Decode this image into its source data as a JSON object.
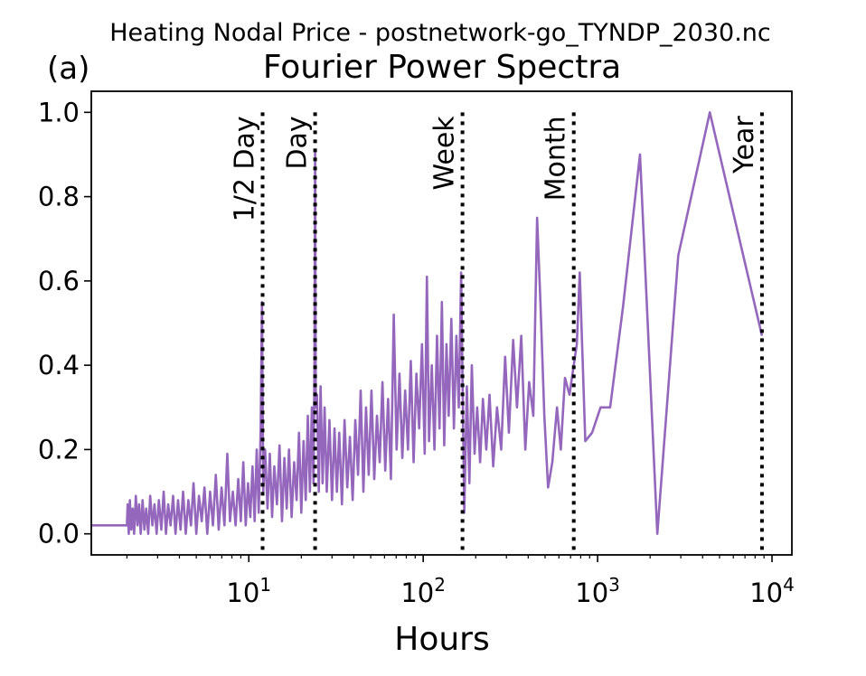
{
  "figure": {
    "suptitle": "Heating Nodal Price - postnetwork-go_TYNDP_2030.nc",
    "panel_label": "(a)"
  },
  "chart_data": {
    "type": "line",
    "title": "Fourier Power Spectra",
    "xlabel": "Hours",
    "ylabel": "",
    "xscale": "log",
    "xlim": [
      1.25,
      13000
    ],
    "ylim": [
      -0.05,
      1.05
    ],
    "x_ticks": [
      {
        "value": 10,
        "base": "10",
        "exp": "1"
      },
      {
        "value": 100,
        "base": "10",
        "exp": "2"
      },
      {
        "value": 1000,
        "base": "10",
        "exp": "3"
      },
      {
        "value": 10000,
        "base": "10",
        "exp": "4"
      }
    ],
    "y_ticks": [
      {
        "value": 0.0,
        "label": "0.0"
      },
      {
        "value": 0.2,
        "label": "0.2"
      },
      {
        "value": 0.4,
        "label": "0.4"
      },
      {
        "value": 0.6,
        "label": "0.6"
      },
      {
        "value": 0.8,
        "label": "0.8"
      },
      {
        "value": 1.0,
        "label": "1.0"
      }
    ],
    "grid": false,
    "series": [
      {
        "color": "#9467bd",
        "points": [
          [
            1.25,
            0.02
          ],
          [
            1.8,
            0.02
          ],
          [
            2.0,
            0.02
          ],
          [
            2.02,
            0.07
          ],
          [
            2.05,
            0.0
          ],
          [
            2.08,
            0.08
          ],
          [
            2.12,
            0.01
          ],
          [
            2.16,
            0.06
          ],
          [
            2.2,
            0.0
          ],
          [
            2.25,
            0.09
          ],
          [
            2.3,
            0.02
          ],
          [
            2.35,
            0.07
          ],
          [
            2.4,
            0.0
          ],
          [
            2.46,
            0.08
          ],
          [
            2.52,
            0.01
          ],
          [
            2.58,
            0.06
          ],
          [
            2.65,
            0.0
          ],
          [
            2.72,
            0.09
          ],
          [
            2.8,
            0.02
          ],
          [
            2.88,
            0.07
          ],
          [
            2.96,
            0.0
          ],
          [
            3.05,
            0.08
          ],
          [
            3.15,
            0.01
          ],
          [
            3.25,
            0.1
          ],
          [
            3.35,
            0.0
          ],
          [
            3.45,
            0.07
          ],
          [
            3.56,
            0.02
          ],
          [
            3.68,
            0.09
          ],
          [
            3.8,
            0.0
          ],
          [
            3.93,
            0.08
          ],
          [
            4.06,
            0.01
          ],
          [
            4.2,
            0.1
          ],
          [
            4.35,
            0.0
          ],
          [
            4.5,
            0.08
          ],
          [
            4.66,
            0.02
          ],
          [
            4.82,
            0.12
          ],
          [
            5.0,
            0.0
          ],
          [
            5.18,
            0.09
          ],
          [
            5.37,
            0.03
          ],
          [
            5.57,
            0.11
          ],
          [
            5.78,
            0.0
          ],
          [
            6.0,
            0.1
          ],
          [
            6.23,
            0.02
          ],
          [
            6.47,
            0.14
          ],
          [
            6.72,
            0.01
          ],
          [
            6.98,
            0.11
          ],
          [
            7.25,
            0.02
          ],
          [
            7.53,
            0.19
          ],
          [
            7.8,
            0.03
          ],
          [
            8.1,
            0.1
          ],
          [
            8.4,
            0.02
          ],
          [
            8.7,
            0.13
          ],
          [
            9.0,
            0.03
          ],
          [
            9.3,
            0.17
          ],
          [
            9.6,
            0.02
          ],
          [
            9.9,
            0.12
          ],
          [
            10.2,
            0.04
          ],
          [
            10.5,
            0.16
          ],
          [
            10.8,
            0.03
          ],
          [
            11.1,
            0.2
          ],
          [
            11.4,
            0.05
          ],
          [
            11.7,
            0.25
          ],
          [
            11.9,
            0.55
          ],
          [
            12.1,
            0.1
          ],
          [
            12.4,
            0.2
          ],
          [
            12.8,
            0.06
          ],
          [
            13.2,
            0.19
          ],
          [
            13.6,
            0.04
          ],
          [
            14.0,
            0.16
          ],
          [
            14.5,
            0.07
          ],
          [
            15.0,
            0.21
          ],
          [
            15.5,
            0.03
          ],
          [
            16.0,
            0.18
          ],
          [
            16.5,
            0.06
          ],
          [
            17.0,
            0.2
          ],
          [
            17.6,
            0.04
          ],
          [
            18.2,
            0.17
          ],
          [
            18.8,
            0.08
          ],
          [
            19.4,
            0.24
          ],
          [
            20.0,
            0.05
          ],
          [
            20.6,
            0.22
          ],
          [
            21.2,
            0.08
          ],
          [
            21.8,
            0.28
          ],
          [
            22.4,
            0.1
          ],
          [
            23.0,
            0.3
          ],
          [
            23.5,
            0.12
          ],
          [
            23.8,
            0.4
          ],
          [
            24.0,
            0.91
          ],
          [
            24.2,
            0.3
          ],
          [
            24.6,
            0.33
          ],
          [
            25.2,
            0.1
          ],
          [
            25.8,
            0.35
          ],
          [
            26.5,
            0.12
          ],
          [
            27.2,
            0.3
          ],
          [
            28.0,
            0.1
          ],
          [
            29.0,
            0.27
          ],
          [
            30.0,
            0.08
          ],
          [
            31.0,
            0.25
          ],
          [
            32.0,
            0.1
          ],
          [
            33.0,
            0.24
          ],
          [
            34.2,
            0.07
          ],
          [
            35.4,
            0.27
          ],
          [
            36.7,
            0.11
          ],
          [
            38.0,
            0.23
          ],
          [
            39.4,
            0.08
          ],
          [
            40.8,
            0.27
          ],
          [
            42.3,
            0.14
          ],
          [
            43.8,
            0.34
          ],
          [
            45.4,
            0.1
          ],
          [
            47.0,
            0.3
          ],
          [
            48.7,
            0.14
          ],
          [
            50.5,
            0.34
          ],
          [
            52.4,
            0.13
          ],
          [
            54.3,
            0.28
          ],
          [
            56.3,
            0.17
          ],
          [
            58.4,
            0.36
          ],
          [
            60.6,
            0.15
          ],
          [
            62.9,
            0.32
          ],
          [
            65.3,
            0.13
          ],
          [
            67.8,
            0.52
          ],
          [
            70.4,
            0.2
          ],
          [
            73.1,
            0.38
          ],
          [
            75.9,
            0.18
          ],
          [
            78.8,
            0.34
          ],
          [
            81.8,
            0.2
          ],
          [
            84.9,
            0.41
          ],
          [
            88.1,
            0.17
          ],
          [
            91.4,
            0.38
          ],
          [
            94.8,
            0.25
          ],
          [
            98.4,
            0.45
          ],
          [
            102.0,
            0.19
          ],
          [
            105.0,
            0.61
          ],
          [
            108.0,
            0.22
          ],
          [
            112.0,
            0.4
          ],
          [
            116.0,
            0.2
          ],
          [
            120.0,
            0.47
          ],
          [
            124.0,
            0.25
          ],
          [
            128.0,
            0.55
          ],
          [
            132.0,
            0.21
          ],
          [
            136.0,
            0.45
          ],
          [
            140.0,
            0.28
          ],
          [
            145.0,
            0.51
          ],
          [
            150.0,
            0.25
          ],
          [
            155.0,
            0.47
          ],
          [
            160.0,
            0.3
          ],
          [
            165.0,
            0.62
          ],
          [
            168.0,
            0.37
          ],
          [
            172.0,
            0.05
          ],
          [
            178.0,
            0.35
          ],
          [
            184.0,
            0.12
          ],
          [
            190.0,
            0.4
          ],
          [
            197.0,
            0.19
          ],
          [
            204.0,
            0.3
          ],
          [
            212.0,
            0.17
          ],
          [
            220.0,
            0.32
          ],
          [
            230.0,
            0.2
          ],
          [
            240.0,
            0.33
          ],
          [
            252.0,
            0.16
          ],
          [
            265.0,
            0.3
          ],
          [
            280.0,
            0.2
          ],
          [
            295.0,
            0.42
          ],
          [
            310.0,
            0.24
          ],
          [
            328.0,
            0.46
          ],
          [
            345.0,
            0.3
          ],
          [
            365.0,
            0.47
          ],
          [
            385.0,
            0.2
          ],
          [
            405.0,
            0.36
          ],
          [
            428.0,
            0.28
          ],
          [
            450.0,
            0.75
          ],
          [
            470.0,
            0.55
          ],
          [
            495.0,
            0.28
          ],
          [
            520.0,
            0.11
          ],
          [
            550.0,
            0.17
          ],
          [
            585.0,
            0.3
          ],
          [
            615.0,
            0.2
          ],
          [
            650.0,
            0.37
          ],
          [
            690.0,
            0.33
          ],
          [
            730.0,
            0.4
          ],
          [
            760.0,
            0.45
          ],
          [
            790.0,
            0.62
          ],
          [
            850.0,
            0.22
          ],
          [
            930.0,
            0.24
          ],
          [
            1040.0,
            0.3
          ],
          [
            1180.0,
            0.3
          ],
          [
            1400.0,
            0.54
          ],
          [
            1750.0,
            0.9
          ],
          [
            2200.0,
            0.0
          ],
          [
            2900.0,
            0.66
          ],
          [
            4400.0,
            1.0
          ],
          [
            8760.0,
            0.47
          ]
        ]
      }
    ],
    "markers": [
      {
        "x": 12,
        "label": "1/2 Day"
      },
      {
        "x": 24,
        "label": "Day"
      },
      {
        "x": 168,
        "label": "Week"
      },
      {
        "x": 730,
        "label": "Month"
      },
      {
        "x": 8760,
        "label": "Year"
      }
    ],
    "marker_color": "#000000"
  }
}
